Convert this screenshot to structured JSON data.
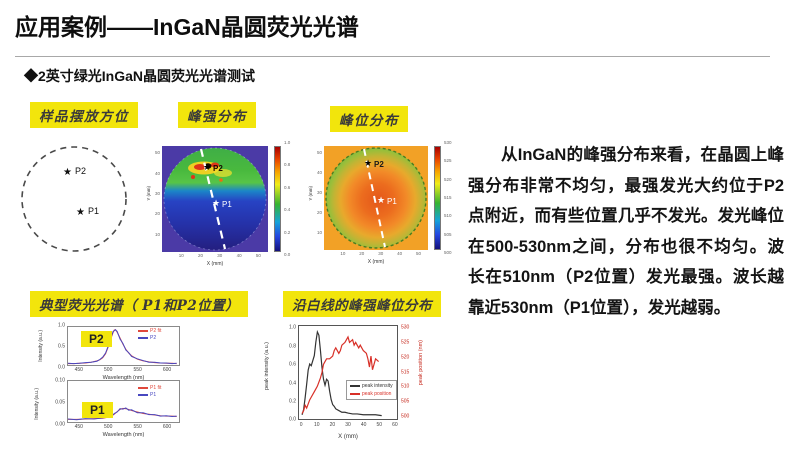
{
  "slide": {
    "title": "应用案例——InGaN晶圆荧光光谱",
    "subtitle": "◆2英寸绿光InGaN晶圆荧光光谱测试",
    "body_text": "从InGaN的峰强分布来看，在晶圆上峰强分布非常不均匀，最强发光大约位于P2点附近，而有些位置几乎不发光。发光峰位在500-530nm之间，分布也很不均匀。波长在510nm（P2位置）发光最强。波长越靠近530nm（P1位置），发光越弱。",
    "accent_yellow": "#f2e50c"
  },
  "labels": {
    "sample_orientation": "样品摆放方位",
    "peak_intensity_map": "峰强分布",
    "peak_position_map": "峰位分布",
    "typical_spectra": "典型荧光光谱（ P1和P2位置）",
    "line_profile": "沿白线的峰强峰位分布"
  },
  "sample_diagram": {
    "star": "★",
    "p1": "P1",
    "p2": "P2"
  },
  "heatmap_intensity": {
    "star": "★",
    "p1": "P1",
    "p2": "P2",
    "xlabel": "X (mm)",
    "ylabel": "Y (mm)",
    "x_ticks": [
      "10",
      "20",
      "30",
      "40",
      "50"
    ],
    "y_ticks": [
      "10",
      "20",
      "30",
      "40",
      "50"
    ],
    "colorbar_ticks": [
      "1.0",
      "0.8",
      "0.6",
      "0.4",
      "0.2",
      "0.0"
    ]
  },
  "heatmap_position": {
    "star": "★",
    "p1": "P1",
    "p2": "P2",
    "xlabel": "X (mm)",
    "ylabel": "Y (mm)",
    "x_ticks": [
      "10",
      "20",
      "30",
      "40",
      "50"
    ],
    "y_ticks": [
      "10",
      "20",
      "30",
      "40",
      "50"
    ],
    "colorbar_ticks": [
      "530",
      "525",
      "520",
      "515",
      "510",
      "505",
      "500"
    ]
  },
  "chart_data": [
    {
      "id": "p2_spectrum",
      "type": "line",
      "badge": "P2",
      "title": "典型荧光光谱 P2",
      "xlabel": "Wavelength (nm)",
      "ylabel": "Intensity (a.u.)",
      "xlim": [
        430,
        622
      ],
      "ylim": [
        -0.03,
        1.08
      ],
      "x_ticks": [
        "450",
        "500",
        "550",
        "600"
      ],
      "y_ticks": [
        "1.0",
        "0.5",
        "0.0"
      ],
      "legend": [
        {
          "label": "P2 fit",
          "color": "#e0483c"
        },
        {
          "label": "P2",
          "color": "#4848c0"
        }
      ],
      "series": [
        {
          "name": "P2 fit",
          "color": "#e0483c",
          "width": 1,
          "x": [
            430,
            440,
            450,
            460,
            470,
            480,
            485,
            490,
            495,
            500,
            505,
            508,
            510,
            512,
            515,
            520,
            525,
            530,
            535,
            540,
            550,
            560,
            570,
            580,
            590,
            600,
            610,
            618
          ],
          "y": [
            0.01,
            0.01,
            0.02,
            0.03,
            0.05,
            0.09,
            0.12,
            0.18,
            0.3,
            0.52,
            0.78,
            0.92,
            0.99,
            1.0,
            0.93,
            0.76,
            0.58,
            0.43,
            0.32,
            0.24,
            0.14,
            0.09,
            0.06,
            0.04,
            0.03,
            0.02,
            0.02,
            0.01
          ]
        },
        {
          "name": "P2",
          "color": "#4848c0",
          "width": 1,
          "x": [
            430,
            440,
            450,
            460,
            470,
            480,
            485,
            490,
            495,
            500,
            505,
            508,
            510,
            512,
            515,
            520,
            525,
            530,
            535,
            540,
            550,
            560,
            570,
            580,
            590,
            600,
            610,
            618
          ],
          "y": [
            0.02,
            0.01,
            0.02,
            0.04,
            0.05,
            0.08,
            0.13,
            0.2,
            0.32,
            0.54,
            0.8,
            0.95,
            0.97,
            1.0,
            0.95,
            0.73,
            0.6,
            0.41,
            0.33,
            0.22,
            0.15,
            0.1,
            0.05,
            0.05,
            0.03,
            0.03,
            0.01,
            0.02
          ]
        }
      ]
    },
    {
      "id": "p1_spectrum",
      "type": "line",
      "badge": "P1",
      "title": "典型荧光光谱 P1",
      "xlabel": "Wavelength (nm)",
      "ylabel": "Intensity (a.u.)",
      "xlim": [
        430,
        622
      ],
      "ylim": [
        -0.003,
        0.108
      ],
      "x_ticks": [
        "450",
        "500",
        "550",
        "600"
      ],
      "y_ticks": [
        "0.10",
        "0.05",
        "0.00"
      ],
      "legend": [
        {
          "label": "P1 fit",
          "color": "#e0483c"
        },
        {
          "label": "P1",
          "color": "#4848c0"
        }
      ],
      "series": [
        {
          "name": "P1 fit",
          "color": "#e0483c",
          "width": 1,
          "x": [
            430,
            445,
            460,
            475,
            490,
            500,
            505,
            510,
            515,
            520,
            525,
            530,
            535,
            540,
            550,
            560,
            570,
            580,
            590,
            600,
            610,
            618
          ],
          "y": [
            0.004,
            0.004,
            0.005,
            0.006,
            0.007,
            0.01,
            0.013,
            0.018,
            0.025,
            0.031,
            0.034,
            0.033,
            0.031,
            0.028,
            0.024,
            0.02,
            0.018,
            0.016,
            0.014,
            0.013,
            0.013,
            0.012
          ]
        },
        {
          "name": "P1",
          "color": "#4848c0",
          "width": 1,
          "x": [
            430,
            445,
            460,
            475,
            490,
            500,
            505,
            510,
            515,
            520,
            525,
            530,
            535,
            540,
            550,
            560,
            570,
            580,
            590,
            600,
            610,
            618
          ],
          "y": [
            0.005,
            0.003,
            0.006,
            0.005,
            0.008,
            0.011,
            0.012,
            0.02,
            0.024,
            0.033,
            0.032,
            0.035,
            0.029,
            0.03,
            0.022,
            0.022,
            0.017,
            0.017,
            0.013,
            0.014,
            0.012,
            0.013
          ]
        }
      ]
    },
    {
      "id": "line_profile",
      "type": "line",
      "title": "沿白线的峰强峰位分布",
      "xlabel": "X (mm)",
      "ylabel_left": "peak intensity (a.u.)",
      "ylabel_right": "peak position (nm)",
      "xlim": [
        -2,
        62
      ],
      "x_ticks": [
        "0",
        "10",
        "20",
        "30",
        "40",
        "50",
        "60"
      ],
      "left_ticks": [
        "1.0",
        "0.8",
        "0.6",
        "0.4",
        "0.2",
        "0.0"
      ],
      "right_ticks": [
        "530",
        "525",
        "520",
        "515",
        "510",
        "505",
        "500"
      ],
      "legend": [
        {
          "label": "peak intensity",
          "color": "#333333"
        },
        {
          "label": "peak position",
          "color": "#d83028"
        }
      ],
      "series": [
        {
          "name": "peak intensity",
          "color": "#333333",
          "width": 1.2,
          "ylim": [
            -0.03,
            1.07
          ],
          "x": [
            0,
            1,
            2,
            3,
            4,
            5,
            6,
            7,
            8,
            9,
            10,
            11,
            12,
            13,
            14,
            15,
            16,
            17,
            18,
            19,
            20,
            21,
            22,
            24,
            26,
            28,
            30,
            33,
            36,
            40,
            44,
            48,
            52
          ],
          "y": [
            0.02,
            0.08,
            0.22,
            0.38,
            0.55,
            0.62,
            0.6,
            0.66,
            0.72,
            0.88,
            1.0,
            0.96,
            0.78,
            0.58,
            0.44,
            0.37,
            0.44,
            0.42,
            0.3,
            0.2,
            0.14,
            0.12,
            0.09,
            0.07,
            0.05,
            0.05,
            0.04,
            0.03,
            0.03,
            0.02,
            0.02,
            0.02,
            0.01
          ]
        },
        {
          "name": "peak position",
          "color": "#d83028",
          "width": 1.2,
          "ylim": [
            498,
            532
          ],
          "x": [
            0,
            1,
            2,
            3,
            5,
            6,
            8,
            9,
            10,
            12,
            13,
            14,
            15,
            16,
            18,
            20,
            21,
            22,
            24,
            25,
            26,
            28,
            29,
            30,
            31,
            33,
            34,
            35,
            37,
            38,
            40,
            42,
            43,
            44,
            45,
            46,
            47,
            48,
            50
          ],
          "y": [
            500,
            501,
            503,
            502,
            505,
            506,
            508,
            509,
            510,
            513,
            515,
            518,
            519,
            520,
            520,
            521,
            523,
            524,
            522,
            523,
            525,
            526,
            527,
            528,
            526,
            527,
            525,
            526,
            524,
            525,
            523,
            522,
            520,
            517,
            521,
            516,
            518,
            520,
            519
          ]
        }
      ]
    }
  ]
}
